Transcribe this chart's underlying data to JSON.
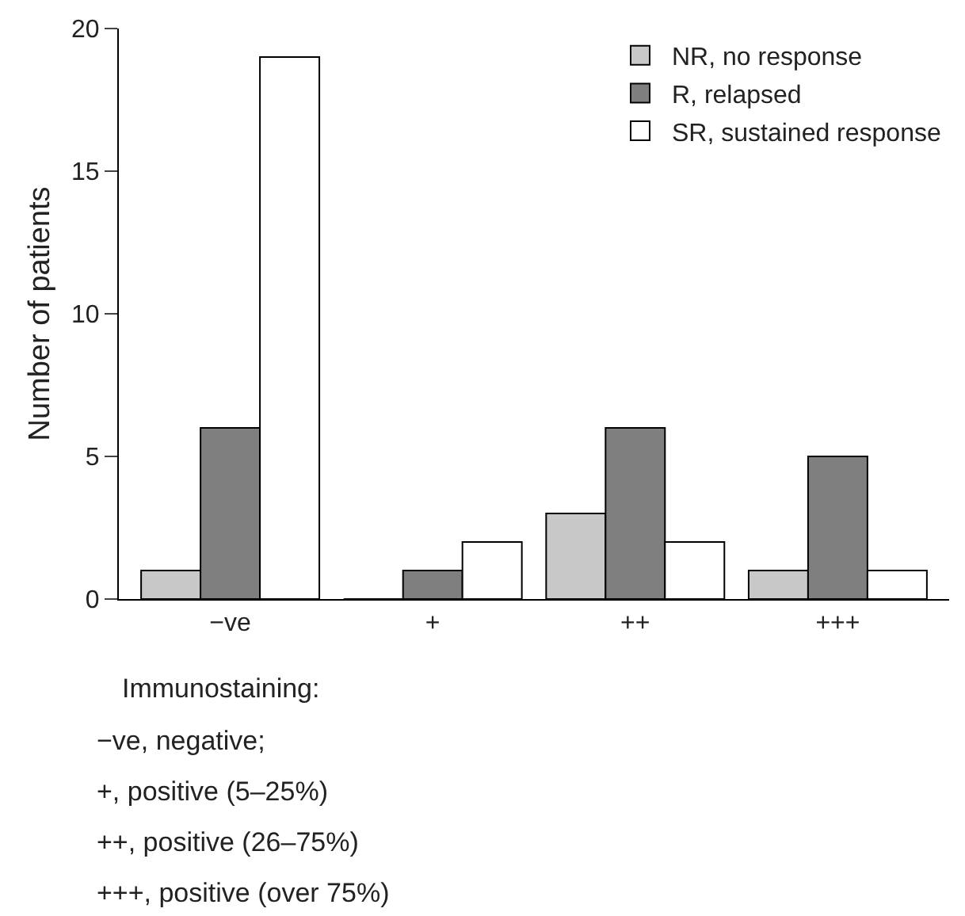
{
  "chart_data": {
    "type": "bar",
    "ylabel": "Number of patients",
    "categories": [
      "−ve",
      "+",
      "++",
      "+++"
    ],
    "series": [
      {
        "name": "NR, no response",
        "color": "#c8c8c8",
        "values": [
          1,
          0,
          3,
          1
        ]
      },
      {
        "name": "R, relapsed",
        "color": "#7f7f7f",
        "values": [
          6,
          1,
          6,
          5
        ]
      },
      {
        "name": "SR, sustained response",
        "color": "#ffffff",
        "values": [
          19,
          2,
          2,
          1
        ]
      }
    ],
    "ylim": [
      0,
      20
    ],
    "yticks": [
      0,
      5,
      10,
      15,
      20
    ],
    "legend": "top right",
    "annotations": [
      "Immunostaining:",
      "−ve, negative;",
      "+, positive (5–25%)",
      "++, positive (26–75%)",
      "+++, positive (over 75%)"
    ]
  }
}
